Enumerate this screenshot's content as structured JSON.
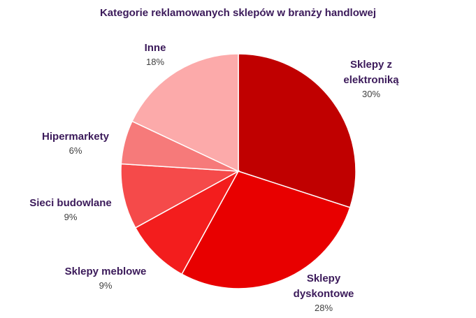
{
  "chart_data": {
    "type": "pie",
    "title": "Kategorie reklamowanych sklepów w branży handlowej",
    "categories": [
      "Sklepy z\nelektroniką",
      "Sklepy\ndyskontowe",
      "Sklepy meblowe",
      "Sieci budowlane",
      "Hipermarkety",
      "Inne"
    ],
    "values": [
      30,
      28,
      9,
      9,
      6,
      18
    ],
    "value_labels": [
      "30%",
      "28%",
      "9%",
      "9%",
      "6%",
      "18%"
    ],
    "colors": [
      "#c00000",
      "#e80000",
      "#f31d1d",
      "#f54a4a",
      "#f67a7a",
      "#fcaaaa"
    ]
  }
}
